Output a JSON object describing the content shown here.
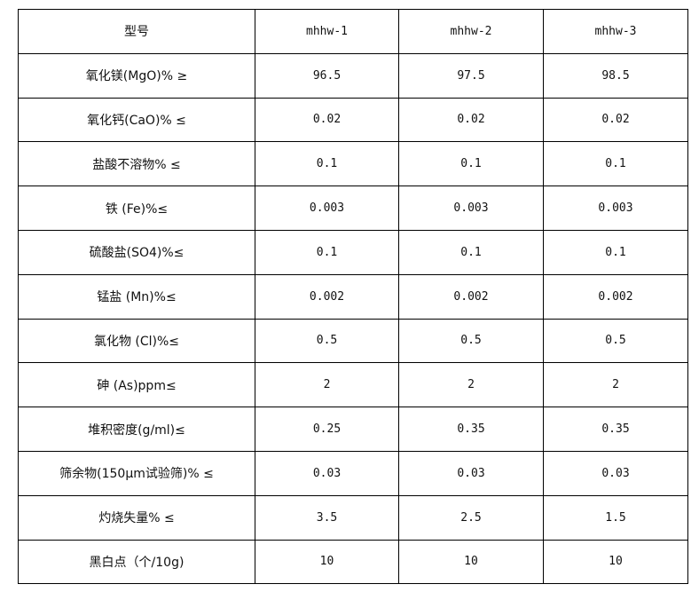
{
  "header": [
    "型号",
    "mhhw-1",
    "mhhw-2",
    "mhhw-3"
  ],
  "rows": [
    [
      "氧化镁(MgO)% ≥",
      "96.5",
      "97.5",
      "98.5"
    ],
    [
      "氧化钙(CaO)% ≤",
      "0.02",
      "0.02",
      "0.02"
    ],
    [
      "盐酸不溶物% ≤",
      "0.1",
      "0.1",
      "0.1"
    ],
    [
      "铁 (Fe)%≤",
      "0.003",
      "0.003",
      "0.003"
    ],
    [
      "硫酸盐(SO4)%≤",
      "0.1",
      "0.1",
      "0.1"
    ],
    [
      "锰盐 (Mn)%≤",
      "0.002",
      "0.002",
      "0.002"
    ],
    [
      "氯化物 (Cl)%≤",
      "0.5",
      "0.5",
      "0.5"
    ],
    [
      "砷 (As)ppm≤",
      "2",
      "2",
      "2"
    ],
    [
      "堆积密度(g/ml)≤",
      "0.25",
      "0.35",
      "0.35"
    ],
    [
      "筛余物(150μm试验筛)% ≤",
      "0.03",
      "0.03",
      "0.03"
    ],
    [
      "灼烧失量% ≤",
      "3.5",
      "2.5",
      "1.5"
    ],
    [
      "黑白点（个/10g)",
      "10",
      "10",
      "10"
    ]
  ]
}
